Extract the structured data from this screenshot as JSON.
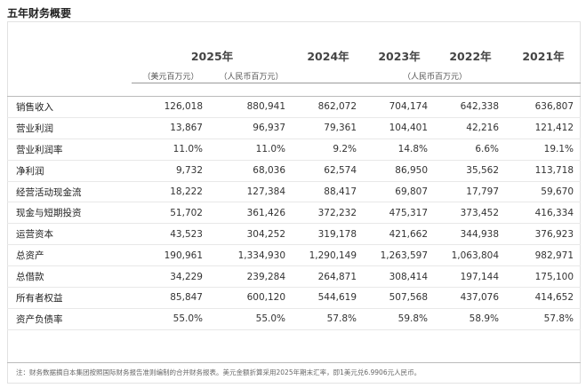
{
  "title": "五年财务概要",
  "years": [
    "2025年",
    "2024年",
    "2023年",
    "2022年",
    "2021年"
  ],
  "units": {
    "usd": "（美元百万元）",
    "rmb_2025": "（人民币百万元）",
    "rmb_hist": "（人民币百万元）"
  },
  "rows": [
    {
      "label": "销售收入",
      "values": [
        "126,018",
        "880,941",
        "862,072",
        "704,174",
        "642,338",
        "636,807"
      ]
    },
    {
      "label": "营业利润",
      "values": [
        "13,867",
        "96,937",
        "79,361",
        "104,401",
        "42,216",
        "121,412"
      ]
    },
    {
      "label": "营业利润率",
      "values": [
        "11.0%",
        "11.0%",
        "9.2%",
        "14.8%",
        "6.6%",
        "19.1%"
      ]
    },
    {
      "label": "净利润",
      "values": [
        "9,732",
        "68,036",
        "62,574",
        "86,950",
        "35,562",
        "113,718"
      ]
    },
    {
      "label": "经营活动现金流",
      "values": [
        "18,222",
        "127,384",
        "88,417",
        "69,807",
        "17,797",
        "59,670"
      ]
    },
    {
      "label": "现金与短期投资",
      "values": [
        "51,702",
        "361,426",
        "372,232",
        "475,317",
        "373,452",
        "416,334"
      ]
    },
    {
      "label": "运营资本",
      "values": [
        "43,523",
        "304,252",
        "319,178",
        "421,662",
        "344,938",
        "376,923"
      ]
    },
    {
      "label": "总资产",
      "values": [
        "190,961",
        "1,334,930",
        "1,290,149",
        "1,263,597",
        "1,063,804",
        "982,971"
      ]
    },
    {
      "label": "总借款",
      "values": [
        "34,229",
        "239,284",
        "264,871",
        "308,414",
        "197,144",
        "175,100"
      ]
    },
    {
      "label": "所有者权益",
      "values": [
        "85,847",
        "600,120",
        "544,619",
        "507,568",
        "437,076",
        "414,652"
      ]
    },
    {
      "label": "资产负债率",
      "values": [
        "55.0%",
        "55.0%",
        "57.8%",
        "59.8%",
        "58.9%",
        "57.8%"
      ]
    }
  ],
  "note": "注：财务数据摘自本集团按照国际财务报告准则编制的合并财务报表。美元金额折算采用2025年期末汇率，即1美元兑6.9906元人民币。"
}
